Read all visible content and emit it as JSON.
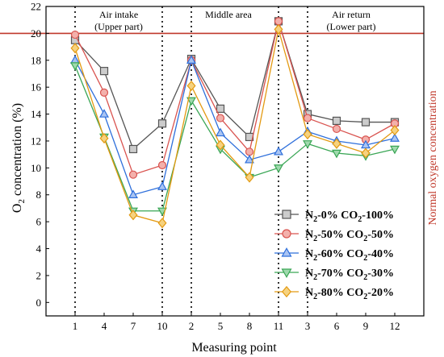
{
  "chart_data": {
    "type": "line",
    "ylabel_main": "O",
    "ylabel_sub": "2",
    "ylabel_rest": " concentration (%)",
    "xlabel": "Measuring point",
    "x_categories": [
      "1",
      "4",
      "7",
      "10",
      "2",
      "5",
      "8",
      "11",
      "3",
      "6",
      "9",
      "12"
    ],
    "ylim": [
      -1,
      22
    ],
    "yticks": [
      0,
      2,
      4,
      6,
      8,
      10,
      12,
      14,
      16,
      18,
      20,
      22
    ],
    "reference_line": {
      "value": 20,
      "label": "Normal oxygen concentration",
      "color": "#c0392b"
    },
    "regions": [
      {
        "line1": "Air intake",
        "line2": "(Upper part)"
      },
      {
        "line1": "Middle area",
        "line2": ""
      },
      {
        "line1": "Air return",
        "line2": "(Lower part)"
      }
    ],
    "vertical_dividers_at": [
      "1",
      "10",
      "2",
      "11",
      "3"
    ],
    "series": [
      {
        "n2": "0%",
        "co2": "100%",
        "marker": "square",
        "color": "#555555",
        "fill": "#cccccc",
        "values": [
          19.5,
          17.2,
          11.4,
          13.3,
          18.1,
          14.4,
          12.3,
          20.9,
          14.0,
          13.5,
          13.4,
          13.4
        ]
      },
      {
        "n2": "50%",
        "co2": "50%",
        "marker": "circle",
        "color": "#d9534f",
        "fill": "#f3b0ab",
        "values": [
          19.9,
          15.6,
          9.5,
          10.2,
          18.0,
          13.7,
          11.2,
          20.9,
          13.7,
          12.9,
          12.1,
          13.3
        ]
      },
      {
        "n2": "60%",
        "co2": "40%",
        "marker": "triangle-up",
        "color": "#2e6fdb",
        "fill": "#a9c4f3",
        "values": [
          18.0,
          14.0,
          8.0,
          8.6,
          18.0,
          12.6,
          10.6,
          11.2,
          12.7,
          12.0,
          11.7,
          12.2
        ]
      },
      {
        "n2": "70%",
        "co2": "30%",
        "marker": "triangle-down",
        "color": "#3aa655",
        "fill": "#9fd9ad",
        "values": [
          17.6,
          12.3,
          6.8,
          6.8,
          15.0,
          11.4,
          9.3,
          10.0,
          11.8,
          11.1,
          10.9,
          11.4
        ]
      },
      {
        "n2": "80%",
        "co2": "20%",
        "marker": "diamond",
        "color": "#e39a12",
        "fill": "#f6d27f",
        "values": [
          18.9,
          12.2,
          6.5,
          5.9,
          16.1,
          11.7,
          9.3,
          20.3,
          12.5,
          11.8,
          11.1,
          12.8
        ]
      }
    ],
    "legend": {
      "position": "bottom-right",
      "n2_prefix": "N",
      "n2_sub": "2",
      "co2_prefix": "CO",
      "co2_sub": "2"
    }
  }
}
